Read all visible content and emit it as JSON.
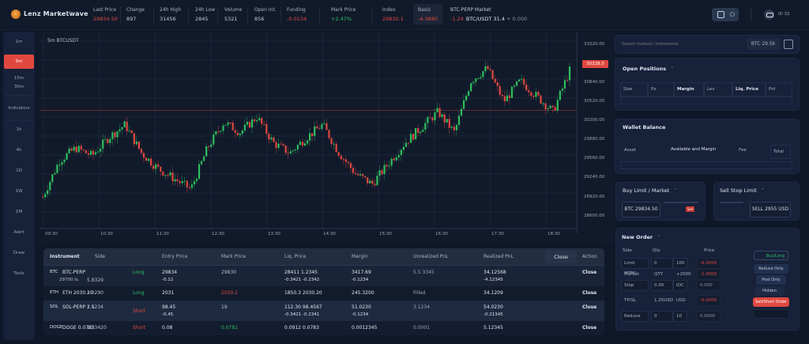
{
  "header": {
    "app_title": "Lenz Marketwave",
    "app_subtitle": "v2",
    "stats": [
      {
        "label": "Last Price",
        "value": "29834.50",
        "color": "#e0483f"
      },
      {
        "label": "Change",
        "value": "897",
        "color": "#c3cad6"
      },
      {
        "label": "24h High",
        "value": "31456",
        "color": "#c3cad6"
      },
      {
        "label": "24h Low",
        "value": "2845",
        "color": "#c3cad6"
      },
      {
        "label": "Volume",
        "value": "5321",
        "color": "#c3cad6"
      },
      {
        "label": "Open Int.",
        "value": "856",
        "color": "#c3cad6"
      },
      {
        "label": "Funding",
        "value": "-0.0134",
        "color": "#e0483f"
      },
      {
        "label": "Mark Price",
        "value": "+2.47%",
        "color": "#2fbf5e"
      },
      {
        "label": "Index",
        "value": "29830.1",
        "color": "#e0483f"
      },
      {
        "label": "Basis",
        "value": "-4.3880",
        "color": "#e0483f"
      }
    ],
    "ticker": {
      "label": "BTC-PERP Market",
      "change": "-1.24",
      "text": "BTC/USDT 31.4",
      "suffix": "+ 0.000"
    },
    "user_label": "ID 32"
  },
  "sidebar": {
    "items": [
      {
        "label": "1m"
      },
      {
        "label": "5m",
        "active": true
      },
      {
        "label": "15m"
      },
      {
        "label": "30m"
      },
      {
        "label": "Indicators"
      },
      {
        "label": "1h"
      },
      {
        "label": "4h"
      },
      {
        "label": "1D"
      },
      {
        "label": "1W"
      },
      {
        "label": "1M"
      },
      {
        "label": "Alert"
      },
      {
        "label": "Draw"
      },
      {
        "label": "Tools"
      }
    ]
  },
  "chart": {
    "title": "5m  BTCUSDT",
    "current_price_tag": "30328.5",
    "y_labels": [
      "31520.00",
      "30840.00",
      "30520.00",
      "30200.00",
      "29880.00",
      "29560.00",
      "29240.00",
      "28920.00",
      "28600.00",
      "28280.00"
    ],
    "x_labels": [
      "09:30",
      "10:30",
      "11:30",
      "12:30",
      "13:30",
      "14:30",
      "15:30",
      "16:30",
      "17:30",
      "18:30"
    ]
  },
  "chart_data": {
    "type": "candlestick",
    "title": "5m BTCUSDT",
    "xlabel": "Time",
    "ylabel": "Price",
    "x_ticks": [
      "09:30",
      "10:30",
      "11:30",
      "12:30",
      "13:30",
      "14:30",
      "15:30",
      "16:30",
      "17:30",
      "18:30"
    ],
    "y_ticks": [
      28280,
      28600,
      28920,
      29240,
      29560,
      29880,
      30200,
      30520,
      30840,
      31520
    ],
    "ylim": [
      28100,
      31700
    ],
    "current_price": 30328.5,
    "trend": [
      28650,
      29350,
      29600,
      29450,
      29800,
      30050,
      29500,
      29200,
      29000,
      28800,
      29600,
      30100,
      29900,
      30200,
      29700,
      29500,
      29800,
      30050,
      29500,
      29100,
      28900,
      29300,
      29700,
      30000,
      30300,
      29900,
      30900,
      31150,
      30500,
      30900,
      30600,
      30300,
      31100
    ]
  },
  "search": {
    "placeholder": "Search markets / instruments",
    "value": "BTC 29.5k"
  },
  "panels": {
    "positions": {
      "title": "Open Positions",
      "cols": [
        "Size",
        "Px",
        "Margin",
        "Lev",
        "Liq. Price",
        "Pnl"
      ]
    },
    "balances": {
      "title": "Wallet Balance",
      "cols": [
        "Asset",
        "Available and Margin",
        "Fee",
        "Total"
      ]
    },
    "quick_buy": {
      "title": "Buy Limit / Market",
      "value": "BTC 29834.50",
      "btn": "Sell"
    },
    "quick_sell": {
      "title": "Sell Stop Limit",
      "value": "SELL 2955 USD"
    },
    "order_form": {
      "title": "New Order",
      "labels": [
        "Side",
        "Qty",
        "Price"
      ],
      "rows": [
        {
          "a": "Limit order",
          "b": "0",
          "c": "100",
          "d": "-0.0000"
        },
        {
          "a": "Market",
          "b": "QTY",
          "c": "+2000",
          "d": "-1.0000"
        },
        {
          "a": "Stop",
          "b": "0.00",
          "c": "IOC",
          "d": "0.000"
        },
        {
          "a": "TP/SL",
          "b": "1.25USD",
          "c": "USD",
          "d": "-0.0000"
        },
        {
          "a": "Reduce",
          "b": "0",
          "c": "10",
          "d": "0.0000"
        }
      ],
      "buttons": [
        {
          "label": "Buy/Long",
          "kind": "buy"
        },
        {
          "label": "Reduce Only Order",
          "kind": "opt"
        },
        {
          "label": "Post Only",
          "kind": "opt"
        },
        {
          "label": "Hidden",
          "kind": "opt"
        },
        {
          "label": "Sell/Short Order",
          "kind": "sell"
        },
        {
          "label": "",
          "kind": "empty"
        }
      ]
    }
  },
  "table": {
    "headers": [
      "Instrument",
      "Side",
      "Entry Price",
      "Mark Price",
      "Liq. Price",
      "Margin",
      "Unrealized PnL",
      "Realized PnL",
      "Close",
      "Action"
    ],
    "rows": [
      {
        "sym": "BTC",
        "name": "BTC-PERP",
        "sub": "29700 Is.",
        "side": "5.8329",
        "tag": "Long",
        "entry": "29834",
        "entry_sub": "-0.12",
        "mark": "29830",
        "liq": "28411 1.2345",
        "liq_sub": "-0.3421 -0.2342",
        "margin": "3417.69",
        "margin_sub": "-0.1234",
        "u": "5.5 3345",
        "r": "34.12568",
        "r_sub": "-4.12345",
        "act": "Close"
      },
      {
        "sym": "ETH",
        "name": "ETH 2030.20",
        "sub": "",
        "side": "1.0290",
        "tag": "Long",
        "entry": "2031",
        "entry_sub": "",
        "mark": "2030.2",
        "liq": "1850.3 2030.20",
        "liq_sub": "",
        "margin": "245.3200",
        "margin_sub": "",
        "u": "Filled",
        "r": "34.1209",
        "r_sub": "",
        "act": "Close"
      },
      {
        "sym": "SOL",
        "name": "SOL-PERP 1.5",
        "sub": "",
        "side": "2.1234",
        "tag": "Short",
        "entry": "98.45",
        "entry_sub": "-0.45",
        "mark": "19",
        "liq": "112.30 98.4567",
        "liq_sub": "-0.3421 -0.2341",
        "margin": "51.0230",
        "margin_sub": "-0.1234",
        "u": "3.1234",
        "r": "54.0230",
        "r_sub": "-0.21345",
        "act": "Close"
      },
      {
        "sym": "DOGE",
        "name": "DOGE 0.0783",
        "sub": "",
        "side": "10.3420",
        "tag": "Short",
        "entry": "0.08",
        "entry_sub": "",
        "mark": "0.0781",
        "liq": "0.0912 0.0783",
        "liq_sub": "",
        "margin": "0.0012345",
        "margin_sub": "",
        "u": "0.0001",
        "r": "5.12345",
        "r_sub": "",
        "act": "Close"
      }
    ]
  },
  "colors": {
    "up": "#2fbf5e",
    "down": "#e0483f",
    "bg": "#0f1828",
    "panel": "#17213a"
  }
}
